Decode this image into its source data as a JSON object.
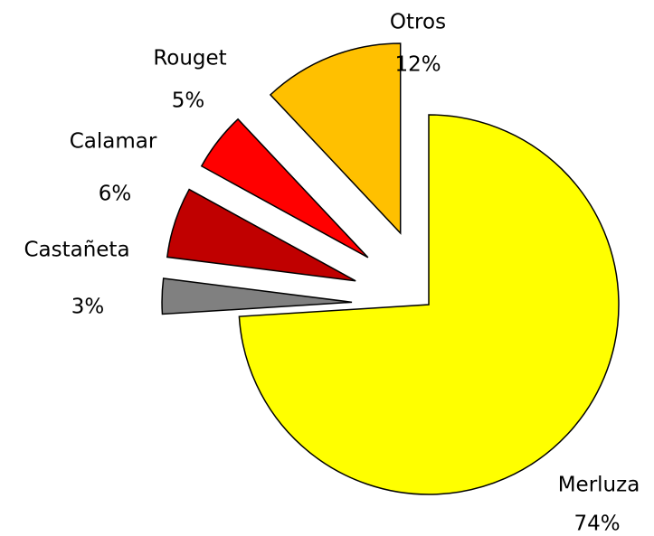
{
  "chart_data": {
    "type": "pie",
    "categories": [
      "Merluza",
      "Castañeta",
      "Calamar",
      "Rouget",
      "Otros"
    ],
    "values": [
      74,
      3,
      6,
      5,
      12
    ],
    "value_labels": [
      "74%",
      "3%",
      "6%",
      "5%",
      "12%"
    ],
    "colors": [
      "#ffff00",
      "#808080",
      "#c00000",
      "#ff0000",
      "#ffc000"
    ]
  }
}
